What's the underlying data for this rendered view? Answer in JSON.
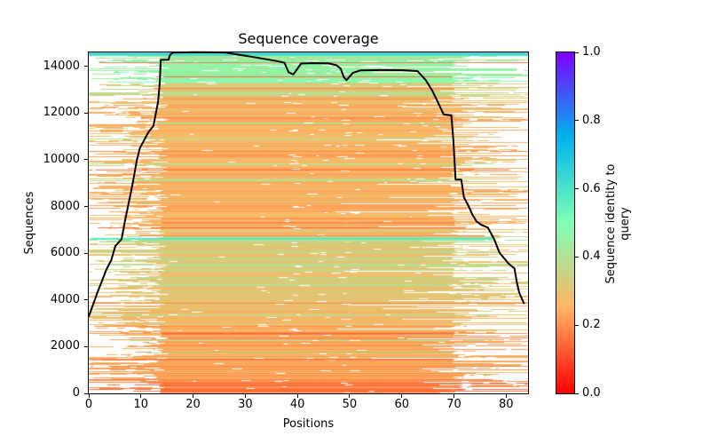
{
  "chart_data": {
    "type": "heatmap",
    "title": "Sequence coverage",
    "xlabel": "Positions",
    "ylabel": "Sequences",
    "xlim": [
      0,
      84.2
    ],
    "ylim": [
      0,
      14600
    ],
    "xticks": [
      0,
      10,
      20,
      30,
      40,
      50,
      60,
      70,
      80
    ],
    "yticks": [
      0,
      2000,
      4000,
      6000,
      8000,
      10000,
      12000,
      14000
    ],
    "grid": false,
    "background": "#ffffff",
    "line_color": "#000000",
    "colorbar": {
      "label": "Sequence identity to query",
      "ticks": [
        "0.0",
        "0.2",
        "0.4",
        "0.6",
        "0.8",
        "1.0"
      ],
      "cmap": "rainbow_r (identity 0=red, 1=violet)",
      "cmap_anchors": [
        [
          127,
          0,
          255
        ],
        [
          0,
          180,
          236
        ],
        [
          127,
          255,
          180
        ],
        [
          255,
          180,
          98
        ],
        [
          255,
          0,
          0
        ]
      ]
    },
    "coverage_line": [
      [
        0,
        3300
      ],
      [
        0.9,
        3840
      ],
      [
        1.7,
        4345
      ],
      [
        2.6,
        4850
      ],
      [
        3.4,
        5315
      ],
      [
        4.3,
        5700
      ],
      [
        5.1,
        6310
      ],
      [
        6.3,
        6605
      ],
      [
        6.9,
        7340
      ],
      [
        7.8,
        8320
      ],
      [
        8.4,
        8970
      ],
      [
        9.2,
        9965
      ],
      [
        9.8,
        10500
      ],
      [
        10.7,
        10880
      ],
      [
        11.5,
        11200
      ],
      [
        12.4,
        11450
      ],
      [
        12.9,
        12025
      ],
      [
        13.3,
        12500
      ],
      [
        13.6,
        13300
      ],
      [
        13.75,
        14000
      ],
      [
        13.8,
        14280
      ],
      [
        15.3,
        14290
      ],
      [
        15.6,
        14500
      ],
      [
        16.1,
        14590
      ],
      [
        20,
        14610
      ],
      [
        26,
        14600
      ],
      [
        31,
        14420
      ],
      [
        36,
        14230
      ],
      [
        37.5,
        14160
      ],
      [
        38.3,
        13750
      ],
      [
        39.2,
        13655
      ],
      [
        40.7,
        14125
      ],
      [
        43,
        14140
      ],
      [
        46,
        14130
      ],
      [
        47.5,
        14050
      ],
      [
        48.3,
        13900
      ],
      [
        48.9,
        13530
      ],
      [
        49.4,
        13410
      ],
      [
        50.6,
        13720
      ],
      [
        52,
        13830
      ],
      [
        56,
        13845
      ],
      [
        60,
        13840
      ],
      [
        63,
        13800
      ],
      [
        64.6,
        13410
      ],
      [
        65.8,
        12980
      ],
      [
        66.8,
        12520
      ],
      [
        68,
        11950
      ],
      [
        69.5,
        11900
      ],
      [
        69.9,
        10800
      ],
      [
        70.3,
        9160
      ],
      [
        71.4,
        9150
      ],
      [
        71.9,
        8400
      ],
      [
        72.8,
        8020
      ],
      [
        73.5,
        7670
      ],
      [
        74.3,
        7370
      ],
      [
        75.2,
        7220
      ],
      [
        76.5,
        7100
      ],
      [
        77.7,
        6605
      ],
      [
        78.7,
        6030
      ],
      [
        80.4,
        5570
      ],
      [
        81.6,
        5345
      ],
      [
        82,
        4810
      ],
      [
        82.5,
        4315
      ],
      [
        83.4,
        3860
      ]
    ],
    "msa": {
      "n_sequences_approx": 14600,
      "dense_block_positions": [
        14,
        70
      ],
      "bands": [
        {
          "rows": [
            14430,
            14660
          ],
          "identity": 0.62,
          "jitter": 0.03,
          "full_width": true
        },
        {
          "rows": [
            13300,
            14430
          ],
          "identity": 0.46,
          "jitter": 0.05
        },
        {
          "rows": [
            12700,
            13300
          ],
          "identity": 0.34,
          "jitter": 0.07
        },
        {
          "rows": [
            6760,
            12700
          ],
          "identity": 0.255,
          "jitter": 0.045
        },
        {
          "rows": [
            6540,
            6760
          ],
          "identity": 0.36,
          "jitter": 0.08
        },
        {
          "rows": [
            4600,
            6540
          ],
          "identity": 0.325,
          "jitter": 0.06
        },
        {
          "rows": [
            2900,
            4600
          ],
          "identity": 0.285,
          "jitter": 0.05
        },
        {
          "rows": [
            600,
            2900
          ],
          "identity": 0.235,
          "jitter": 0.05
        },
        {
          "rows": [
            0,
            600
          ],
          "identity": 0.185,
          "jitter": 0.04
        }
      ],
      "highlight_rows": [
        {
          "row": 6620,
          "identity": 0.58,
          "start": 0.4,
          "end": 77.7,
          "thickness": 2
        },
        {
          "row": 6500,
          "identity": 0.44,
          "start": 2,
          "end": 76,
          "thickness": 1
        },
        {
          "row": 7300,
          "identity": 0.16,
          "start": 14,
          "end": 70,
          "thickness": 1.4
        },
        {
          "row": 7480,
          "identity": 0.18,
          "start": 14,
          "end": 70,
          "thickness": 1
        },
        {
          "row": 13050,
          "identity": 0.19,
          "start": 12.5,
          "end": 70,
          "thickness": 1.4
        },
        {
          "row": 12600,
          "identity": 0.21,
          "start": 11,
          "end": 70,
          "thickness": 1
        },
        {
          "row": 11800,
          "identity": 0.18,
          "start": 10,
          "end": 70,
          "thickness": 1.4
        },
        {
          "row": 2550,
          "identity": 0.13,
          "start": 14,
          "end": 70,
          "thickness": 1.6
        },
        {
          "row": 1450,
          "identity": 0.145,
          "start": 0,
          "end": 70,
          "thickness": 1.4
        },
        {
          "row": 150,
          "identity": 0.15,
          "start": 14,
          "end": 72,
          "thickness": 1.4
        }
      ]
    }
  }
}
